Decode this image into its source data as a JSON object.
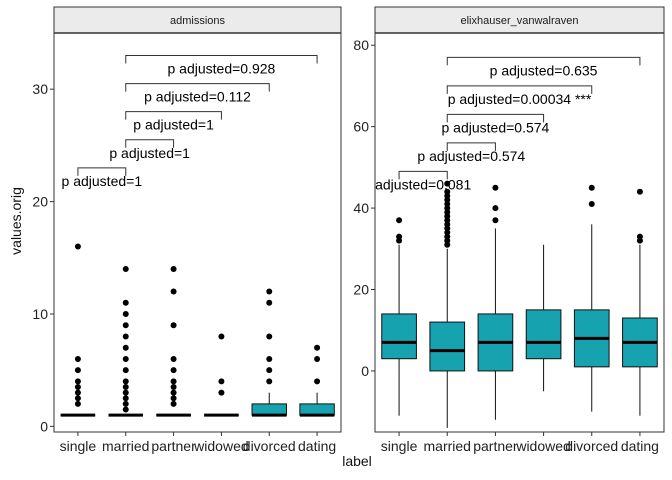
{
  "chart_data": {
    "type": "boxplot",
    "xlabel": "label",
    "ylabel": "values.orig",
    "categories": [
      "single",
      "married",
      "partner",
      "widowed",
      "divorced",
      "dating"
    ],
    "fill_color_significant": "#17a2b0",
    "fill_color_flat": "#000000",
    "facets": [
      {
        "name": "admissions",
        "ylim": [
          -0.5,
          35
        ],
        "yticks": [
          0,
          10,
          20,
          30
        ],
        "boxes": [
          {
            "category": "single",
            "q1": 1,
            "median": 1,
            "q3": 1,
            "whisker_low": 1,
            "whisker_high": 1,
            "outliers": [
              2,
              2.5,
              3,
              3.5,
              4,
              5,
              6,
              16
            ]
          },
          {
            "category": "married",
            "q1": 1,
            "median": 1,
            "q3": 1,
            "whisker_low": 1,
            "whisker_high": 1,
            "outliers": [
              1.5,
              2,
              2.5,
              3,
              3.5,
              4,
              5,
              6,
              7,
              8,
              9,
              10,
              11,
              14
            ]
          },
          {
            "category": "partner",
            "q1": 1,
            "median": 1,
            "q3": 1,
            "whisker_low": 1,
            "whisker_high": 1,
            "outliers": [
              2,
              2.5,
              3,
              3.5,
              4,
              5,
              6,
              9,
              12,
              14
            ]
          },
          {
            "category": "widowed",
            "q1": 1,
            "median": 1,
            "q3": 1,
            "whisker_low": 1,
            "whisker_high": 1,
            "outliers": [
              3,
              4,
              8
            ]
          },
          {
            "category": "divorced",
            "q1": 1,
            "median": 1,
            "q3": 2,
            "whisker_low": 1,
            "whisker_high": 3,
            "outliers": [
              4,
              5,
              6,
              8,
              11,
              12
            ]
          },
          {
            "category": "dating",
            "q1": 1,
            "median": 1,
            "q3": 2,
            "whisker_low": 1,
            "whisker_high": 3,
            "outliers": [
              4,
              6,
              7
            ]
          }
        ],
        "comparisons": [
          {
            "from": "single",
            "to": "married",
            "label": "p adjusted=1",
            "y": 23
          },
          {
            "from": "married",
            "to": "partner",
            "label": "p adjusted=1",
            "y": 25.5
          },
          {
            "from": "married",
            "to": "widowed",
            "label": "p adjusted=1",
            "y": 28
          },
          {
            "from": "married",
            "to": "divorced",
            "label": "p adjusted=0.112",
            "y": 30.5
          },
          {
            "from": "married",
            "to": "dating",
            "label": "p adjusted=0.928",
            "y": 33
          }
        ]
      },
      {
        "name": "elixhauser_vanwalraven",
        "ylim": [
          -15,
          83
        ],
        "yticks": [
          0,
          20,
          40,
          60,
          80
        ],
        "boxes": [
          {
            "category": "single",
            "q1": 3,
            "median": 7,
            "q3": 14,
            "whisker_low": -11,
            "whisker_high": 31,
            "outliers": [
              32,
              33,
              37
            ]
          },
          {
            "category": "married",
            "q1": 0,
            "median": 5,
            "q3": 12,
            "whisker_low": -14,
            "whisker_high": 30,
            "outliers": [
              31,
              32,
              33,
              34,
              35,
              36,
              37,
              38,
              39,
              40,
              41,
              42,
              43,
              44,
              46
            ]
          },
          {
            "category": "partner",
            "q1": 0,
            "median": 7,
            "q3": 14,
            "whisker_low": -12,
            "whisker_high": 35,
            "outliers": [
              37,
              40,
              45
            ]
          },
          {
            "category": "widowed",
            "q1": 3,
            "median": 7,
            "q3": 15,
            "whisker_low": -5,
            "whisker_high": 31,
            "outliers": []
          },
          {
            "category": "divorced",
            "q1": 1,
            "median": 8,
            "q3": 15,
            "whisker_low": -10,
            "whisker_high": 36,
            "outliers": [
              41,
              45
            ]
          },
          {
            "category": "dating",
            "q1": 1,
            "median": 7,
            "q3": 13,
            "whisker_low": -11,
            "whisker_high": 31,
            "outliers": [
              32,
              33,
              44
            ]
          }
        ],
        "comparisons": [
          {
            "from": "single",
            "to": "married",
            "label": "adjusted=0.081",
            "y": 49
          },
          {
            "from": "married",
            "to": "partner",
            "label": "p adjusted=0.574",
            "y": 56
          },
          {
            "from": "married",
            "to": "widowed",
            "label": "p adjusted=0.574",
            "y": 63
          },
          {
            "from": "married",
            "to": "divorced",
            "label": "p adjusted=0.00034 ***",
            "y": 70
          },
          {
            "from": "married",
            "to": "dating",
            "label": "p adjusted=0.635",
            "y": 77
          }
        ]
      }
    ]
  }
}
